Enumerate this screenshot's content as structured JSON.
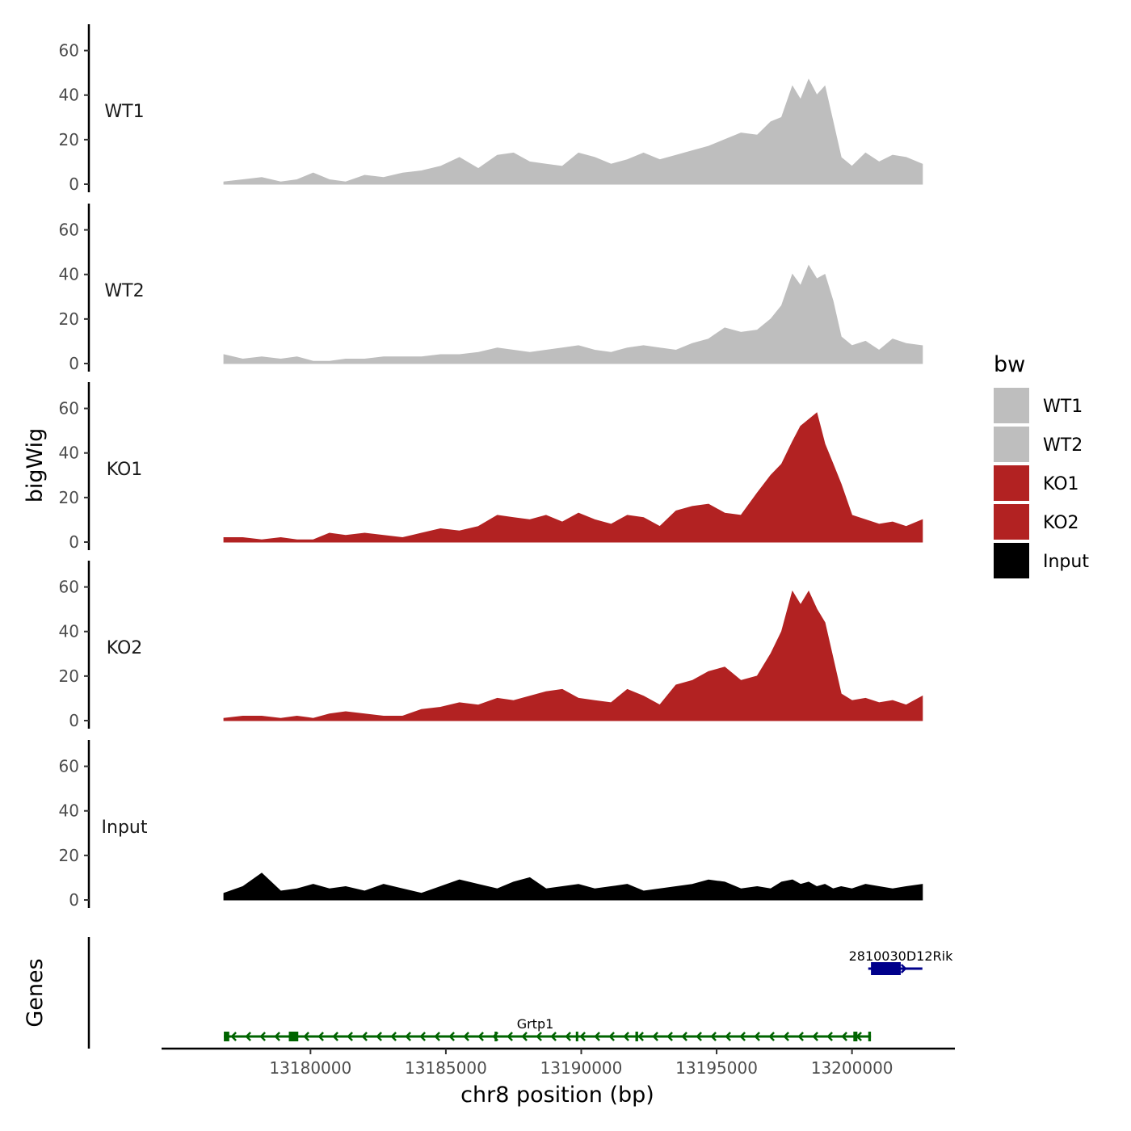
{
  "chart_data": {
    "type": "area",
    "chromosome": "chr8",
    "xlabel": "chr8 position (bp)",
    "ylabel": "bigWig",
    "genes_label": "Genes",
    "xlim": [
      13174500,
      13203800
    ],
    "ylim": [
      0,
      70
    ],
    "x_ticks": [
      13180000,
      13185000,
      13190000,
      13195000,
      13200000
    ],
    "x_tick_labels": [
      "13180000",
      "13185000",
      "13190000",
      "13195000",
      "13200000"
    ],
    "y_ticks": [
      0,
      20,
      40,
      60
    ],
    "y_tick_labels": [
      "0",
      "20",
      "40",
      "60"
    ],
    "legend": {
      "title": "bw",
      "entries": [
        {
          "label": "WT1",
          "color": "#bebebe"
        },
        {
          "label": "WT2",
          "color": "#bebebe"
        },
        {
          "label": "KO1",
          "color": "#b22222"
        },
        {
          "label": "KO2",
          "color": "#b22222"
        },
        {
          "label": "Input",
          "color": "#000000"
        }
      ]
    },
    "series": [
      {
        "name": "WT1",
        "color": "#bebebe",
        "x": [
          13176800,
          13177500,
          13178200,
          13178900,
          13179500,
          13180100,
          13180700,
          13181300,
          13182000,
          13182700,
          13183400,
          13184100,
          13184800,
          13185500,
          13186200,
          13186900,
          13187500,
          13188100,
          13188700,
          13189300,
          13189900,
          13190500,
          13191100,
          13191700,
          13192300,
          13192900,
          13193500,
          13194100,
          13194700,
          13195300,
          13195900,
          13196500,
          13197000,
          13197400,
          13197800,
          13198100,
          13198400,
          13198700,
          13199000,
          13199300,
          13199600,
          13200000,
          13200500,
          13201000,
          13201500,
          13202000,
          13202600
        ],
        "values": [
          1,
          2,
          3,
          1,
          2,
          5,
          2,
          1,
          4,
          3,
          5,
          6,
          8,
          12,
          7,
          13,
          14,
          10,
          9,
          8,
          14,
          12,
          9,
          11,
          14,
          11,
          13,
          15,
          17,
          20,
          23,
          22,
          28,
          30,
          44,
          38,
          47,
          40,
          44,
          28,
          12,
          8,
          14,
          10,
          13,
          12,
          9
        ]
      },
      {
        "name": "WT2",
        "color": "#bebebe",
        "x": [
          13176800,
          13177500,
          13178200,
          13178900,
          13179500,
          13180100,
          13180700,
          13181300,
          13182000,
          13182700,
          13183400,
          13184100,
          13184800,
          13185500,
          13186200,
          13186900,
          13187500,
          13188100,
          13188700,
          13189300,
          13189900,
          13190500,
          13191100,
          13191700,
          13192300,
          13192900,
          13193500,
          13194100,
          13194700,
          13195300,
          13195900,
          13196500,
          13197000,
          13197400,
          13197800,
          13198100,
          13198400,
          13198700,
          13199000,
          13199300,
          13199600,
          13200000,
          13200500,
          13201000,
          13201500,
          13202000,
          13202600
        ],
        "values": [
          4,
          2,
          3,
          2,
          3,
          1,
          1,
          2,
          2,
          3,
          3,
          3,
          4,
          4,
          5,
          7,
          6,
          5,
          6,
          7,
          8,
          6,
          5,
          7,
          8,
          7,
          6,
          9,
          11,
          16,
          14,
          15,
          20,
          26,
          40,
          35,
          44,
          38,
          40,
          28,
          12,
          8,
          10,
          6,
          11,
          9,
          8
        ]
      },
      {
        "name": "KO1",
        "color": "#b22222",
        "x": [
          13176800,
          13177500,
          13178200,
          13178900,
          13179500,
          13180100,
          13180700,
          13181300,
          13182000,
          13182700,
          13183400,
          13184100,
          13184800,
          13185500,
          13186200,
          13186900,
          13187500,
          13188100,
          13188700,
          13189300,
          13189900,
          13190500,
          13191100,
          13191700,
          13192300,
          13192900,
          13193500,
          13194100,
          13194700,
          13195300,
          13195900,
          13196500,
          13197000,
          13197400,
          13197800,
          13198100,
          13198400,
          13198700,
          13199000,
          13199300,
          13199600,
          13200000,
          13200500,
          13201000,
          13201500,
          13202000,
          13202600
        ],
        "values": [
          2,
          2,
          1,
          2,
          1,
          1,
          4,
          3,
          4,
          3,
          2,
          4,
          6,
          5,
          7,
          12,
          11,
          10,
          12,
          9,
          13,
          10,
          8,
          12,
          11,
          7,
          14,
          16,
          17,
          13,
          12,
          22,
          30,
          35,
          45,
          52,
          55,
          58,
          44,
          35,
          26,
          12,
          10,
          8,
          9,
          7,
          10
        ]
      },
      {
        "name": "KO2",
        "color": "#b22222",
        "x": [
          13176800,
          13177500,
          13178200,
          13178900,
          13179500,
          13180100,
          13180700,
          13181300,
          13182000,
          13182700,
          13183400,
          13184100,
          13184800,
          13185500,
          13186200,
          13186900,
          13187500,
          13188100,
          13188700,
          13189300,
          13189900,
          13190500,
          13191100,
          13191700,
          13192300,
          13192900,
          13193500,
          13194100,
          13194700,
          13195300,
          13195900,
          13196500,
          13197000,
          13197400,
          13197800,
          13198100,
          13198400,
          13198700,
          13199000,
          13199300,
          13199600,
          13200000,
          13200500,
          13201000,
          13201500,
          13202000,
          13202600
        ],
        "values": [
          1,
          2,
          2,
          1,
          2,
          1,
          3,
          4,
          3,
          2,
          2,
          5,
          6,
          8,
          7,
          10,
          9,
          11,
          13,
          14,
          10,
          9,
          8,
          14,
          11,
          7,
          16,
          18,
          22,
          24,
          18,
          20,
          30,
          40,
          58,
          52,
          58,
          50,
          44,
          28,
          12,
          9,
          10,
          8,
          9,
          7,
          11
        ]
      },
      {
        "name": "Input",
        "color": "#000000",
        "x": [
          13176800,
          13177500,
          13178200,
          13178900,
          13179500,
          13180100,
          13180700,
          13181300,
          13182000,
          13182700,
          13183400,
          13184100,
          13184800,
          13185500,
          13186200,
          13186900,
          13187500,
          13188100,
          13188700,
          13189300,
          13189900,
          13190500,
          13191100,
          13191700,
          13192300,
          13192900,
          13193500,
          13194100,
          13194700,
          13195300,
          13195900,
          13196500,
          13197000,
          13197400,
          13197800,
          13198100,
          13198400,
          13198700,
          13199000,
          13199300,
          13199600,
          13200000,
          13200500,
          13201000,
          13201500,
          13202000,
          13202600
        ],
        "values": [
          3,
          6,
          12,
          4,
          5,
          7,
          5,
          6,
          4,
          7,
          5,
          3,
          6,
          9,
          7,
          5,
          8,
          10,
          5,
          6,
          7,
          5,
          6,
          7,
          4,
          5,
          6,
          7,
          9,
          8,
          5,
          6,
          5,
          8,
          9,
          7,
          8,
          6,
          7,
          5,
          6,
          5,
          7,
          6,
          5,
          6,
          7
        ]
      }
    ],
    "genes": [
      {
        "name": "Grtp1",
        "strand": "-",
        "color": "#006400",
        "start": 13176800,
        "end": 13200700,
        "exons": [
          [
            13176800,
            13177000
          ],
          [
            13179200,
            13179550
          ],
          [
            13186800,
            13186870
          ],
          [
            13189800,
            13189870
          ],
          [
            13192000,
            13192100
          ],
          [
            13200050,
            13200200
          ],
          [
            13200600,
            13200700
          ]
        ]
      },
      {
        "name": "2810030D12Rik",
        "strand": "+",
        "color": "#00008b",
        "start": 13200600,
        "end": 13202600,
        "exons": [
          [
            13200700,
            13201800
          ]
        ]
      }
    ]
  }
}
